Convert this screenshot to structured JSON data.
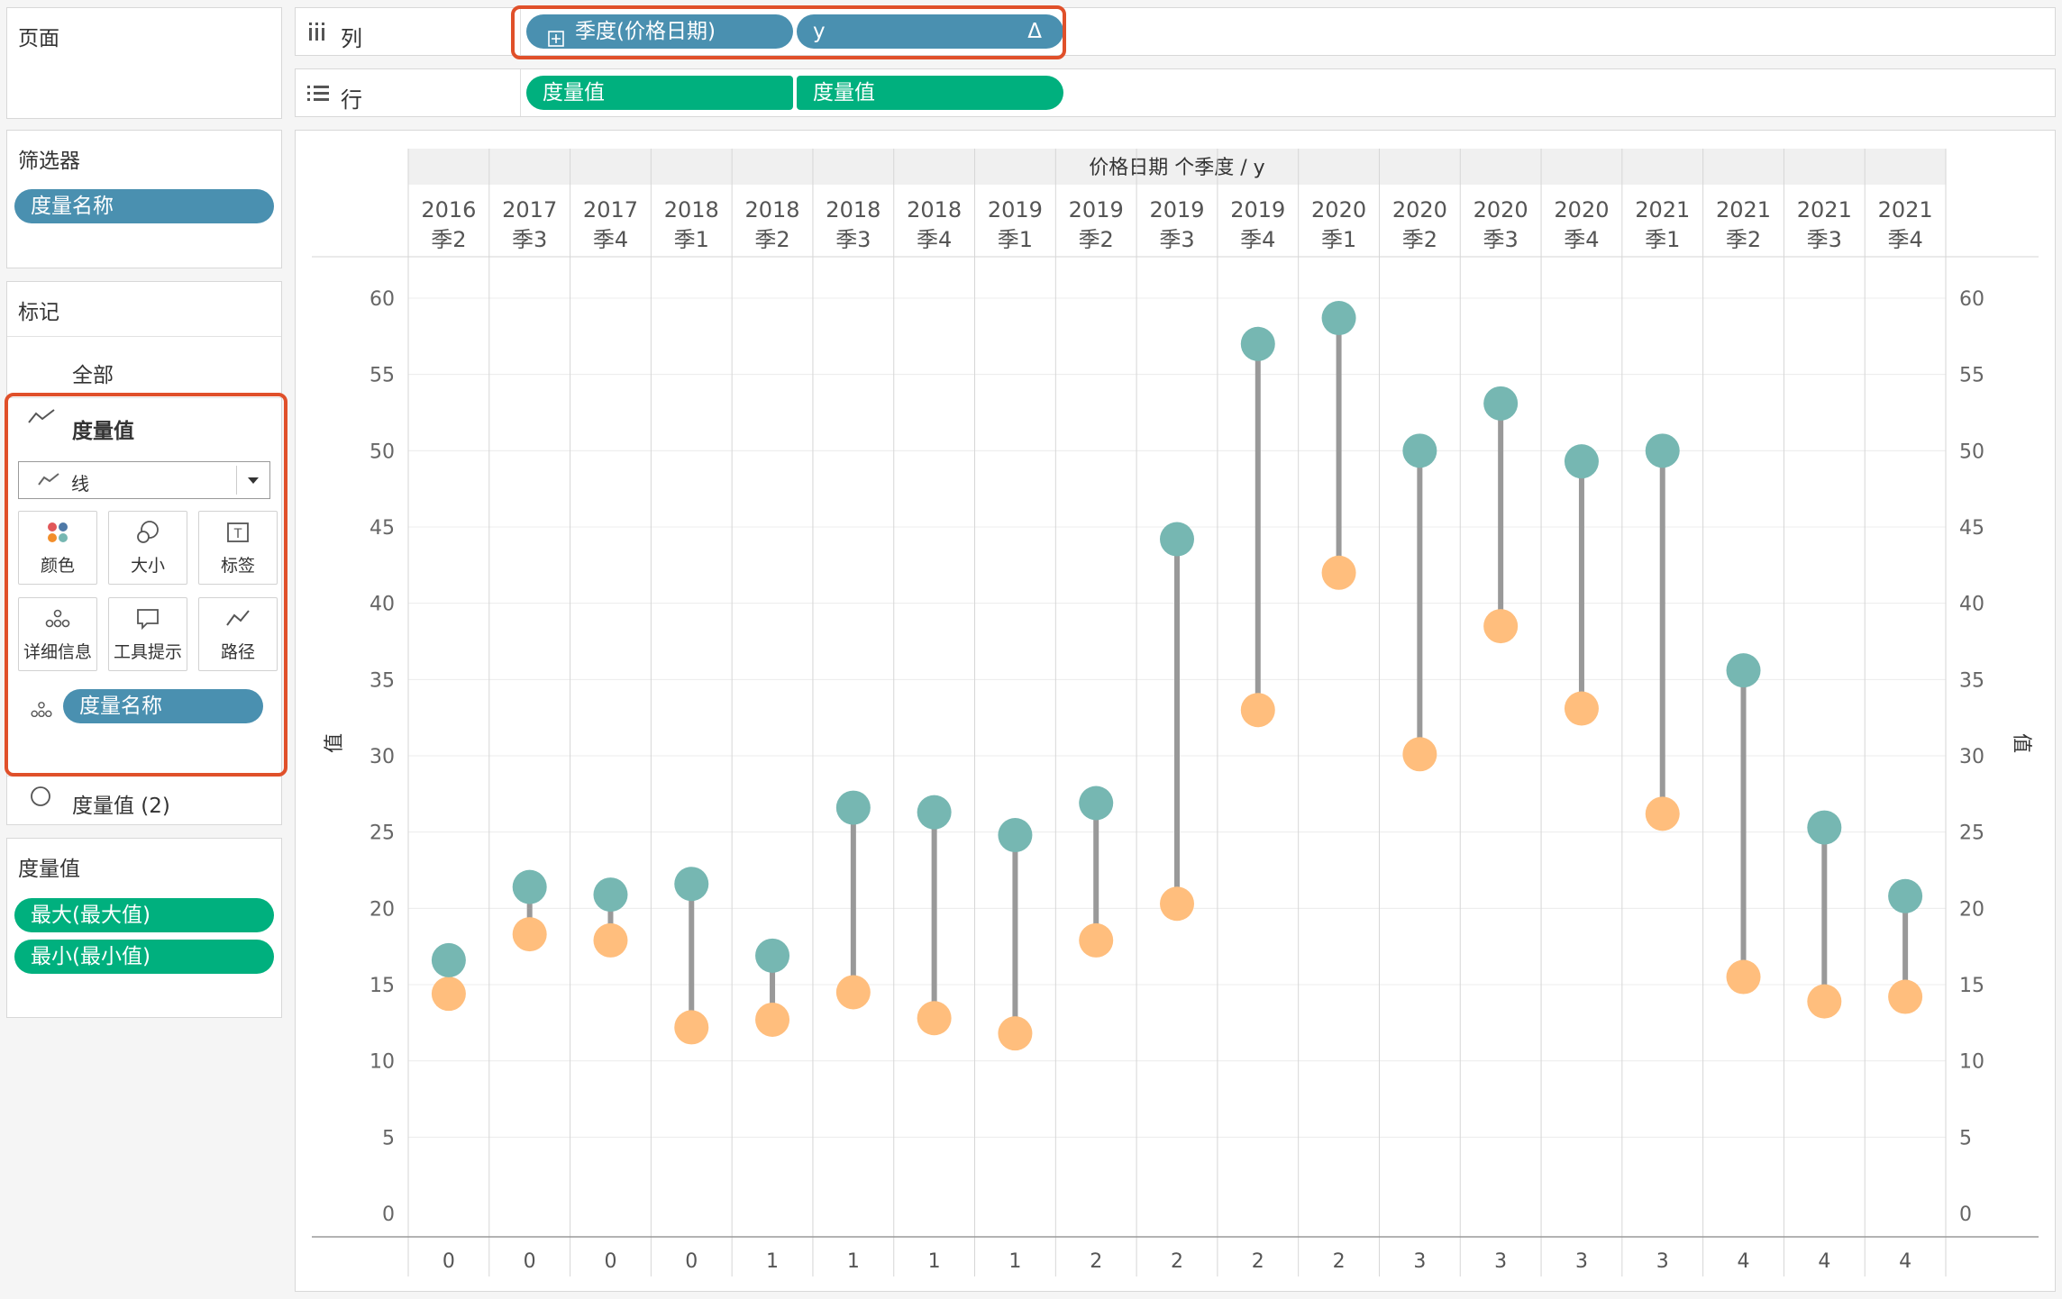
{
  "pages_card": {
    "title": "页面"
  },
  "filters_card": {
    "title": "筛选器",
    "pill": "度量名称"
  },
  "marks_card": {
    "title": "标记",
    "all_label": "全部",
    "measure_label": "度量值",
    "mark_type": "线",
    "buttons": {
      "color": "颜色",
      "size": "大小",
      "label": "标签",
      "detail": "详细信息",
      "tooltip": "工具提示",
      "path": "路径"
    },
    "detail_pill": "度量名称",
    "measure2_label": "度量值 (2)"
  },
  "measures_card": {
    "title": "度量值",
    "items": [
      "最大(最大值)",
      "最小(最小值)"
    ]
  },
  "columns_shelf": {
    "label": "列",
    "pill1": "季度(价格日期)",
    "pill2": "y",
    "delta_symbol": "Δ"
  },
  "rows_shelf": {
    "label": "行",
    "pill1": "度量值",
    "pill2": "度量值"
  },
  "chart_data": {
    "type": "dumbbell",
    "header_title": "价格日期 个季度 / y",
    "ylabel_left": "值",
    "ylabel_right": "值",
    "ylim": [
      0,
      60
    ],
    "yticks": [
      0,
      5,
      10,
      15,
      20,
      25,
      30,
      35,
      40,
      45,
      50,
      55,
      60
    ],
    "columns": [
      {
        "year": "2016",
        "quarter": "季2",
        "y": "0"
      },
      {
        "year": "2017",
        "quarter": "季3",
        "y": "0"
      },
      {
        "year": "2017",
        "quarter": "季4",
        "y": "0"
      },
      {
        "year": "2018",
        "quarter": "季1",
        "y": "0"
      },
      {
        "year": "2018",
        "quarter": "季2",
        "y": "1"
      },
      {
        "year": "2018",
        "quarter": "季3",
        "y": "1"
      },
      {
        "year": "2018",
        "quarter": "季4",
        "y": "1"
      },
      {
        "year": "2019",
        "quarter": "季1",
        "y": "1"
      },
      {
        "year": "2019",
        "quarter": "季2",
        "y": "2"
      },
      {
        "year": "2019",
        "quarter": "季3",
        "y": "2"
      },
      {
        "year": "2019",
        "quarter": "季4",
        "y": "2"
      },
      {
        "year": "2020",
        "quarter": "季1",
        "y": "2"
      },
      {
        "year": "2020",
        "quarter": "季2",
        "y": "3"
      },
      {
        "year": "2020",
        "quarter": "季3",
        "y": "3"
      },
      {
        "year": "2020",
        "quarter": "季4",
        "y": "3"
      },
      {
        "year": "2021",
        "quarter": "季1",
        "y": "3"
      },
      {
        "year": "2021",
        "quarter": "季2",
        "y": "4"
      },
      {
        "year": "2021",
        "quarter": "季3",
        "y": "4"
      },
      {
        "year": "2021",
        "quarter": "季4",
        "y": "4"
      }
    ],
    "series": [
      {
        "name": "最大(最大值)",
        "color": "#76b7b2",
        "values": [
          16.6,
          21.4,
          20.9,
          21.6,
          16.9,
          26.6,
          26.3,
          24.8,
          26.9,
          44.2,
          57.0,
          58.7,
          50.0,
          53.1,
          49.3,
          50.0,
          35.6,
          25.3,
          20.8
        ]
      },
      {
        "name": "最小(最小值)",
        "color": "#ffbe7d",
        "values": [
          14.4,
          18.3,
          17.9,
          12.2,
          12.7,
          14.5,
          12.8,
          11.8,
          17.9,
          20.3,
          33.0,
          42.0,
          30.1,
          38.5,
          33.1,
          26.2,
          15.5,
          13.9,
          14.2
        ]
      }
    ],
    "line_color": "#999999"
  }
}
